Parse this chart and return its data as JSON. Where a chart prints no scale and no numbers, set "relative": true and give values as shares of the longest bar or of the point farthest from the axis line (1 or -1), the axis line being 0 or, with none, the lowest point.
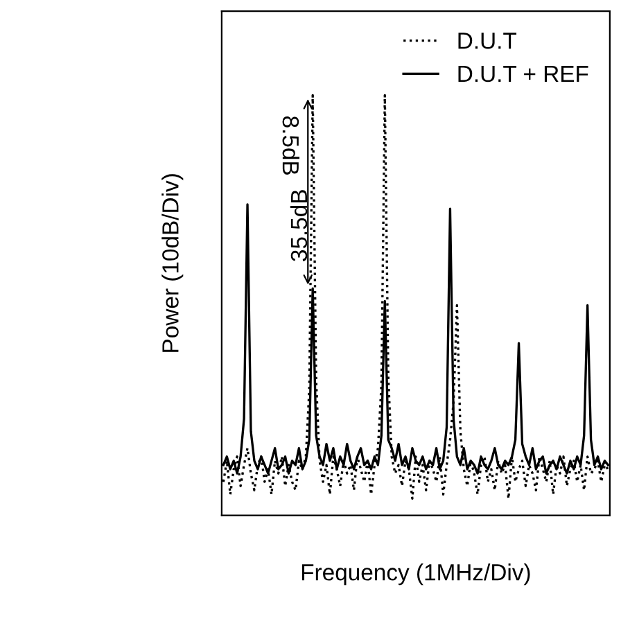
{
  "chart_data": {
    "type": "line",
    "relative": true,
    "xlabel": "Frequency (1MHz/Div)",
    "ylabel": "Power (10dB/Div)",
    "legend": "top right",
    "marker": "none",
    "tick_labels": false,
    "grid": false,
    "annotations": [
      "35.5dB",
      "8.5dB"
    ],
    "categories": [
      null,
      null,
      null,
      null,
      null,
      null,
      null,
      null,
      null,
      null,
      null,
      null,
      null,
      null,
      null,
      null,
      null,
      null,
      null,
      null,
      null,
      null,
      null,
      null,
      null,
      null,
      null,
      null,
      null,
      null,
      null,
      null,
      null,
      null,
      null,
      null,
      null,
      null,
      null,
      null,
      null,
      null,
      null,
      null,
      null,
      null,
      null,
      null,
      null,
      null,
      null,
      null,
      null,
      null,
      null,
      null,
      null,
      null,
      null,
      null,
      null,
      null,
      null,
      null,
      null,
      null,
      null,
      null,
      null,
      null,
      null,
      null,
      null,
      null,
      null,
      null,
      null,
      null,
      null,
      null,
      null,
      null,
      null,
      null,
      null,
      null,
      null,
      null,
      null,
      null,
      null,
      null,
      null,
      null,
      null,
      null,
      null,
      null,
      null,
      null,
      null,
      null,
      null,
      null,
      null,
      null,
      null,
      null,
      null,
      null,
      null,
      null,
      null
    ],
    "series": [
      {
        "name": "D.U.T",
        "color": "#000000",
        "line_style": "dotted",
        "values": [
          0.08,
          0.13,
          0.05,
          0.11,
          0.14,
          0.07,
          0.12,
          0.16,
          0.1,
          0.06,
          0.12,
          0.14,
          0.08,
          0.11,
          0.05,
          0.13,
          0.1,
          0.14,
          0.07,
          0.12,
          0.08,
          0.06,
          0.13,
          0.11,
          0.14,
          0.3,
          1.0,
          0.32,
          0.13,
          0.08,
          0.12,
          0.05,
          0.14,
          0.11,
          0.07,
          0.13,
          0.1,
          0.12,
          0.06,
          0.14,
          0.11,
          0.08,
          0.13,
          0.05,
          0.12,
          0.16,
          0.31,
          1.0,
          0.33,
          0.14,
          0.1,
          0.12,
          0.07,
          0.13,
          0.11,
          0.04,
          0.14,
          0.08,
          0.12,
          0.06,
          0.13,
          0.11,
          0.08,
          0.14,
          0.05,
          0.12,
          0.18,
          0.27,
          0.5,
          0.2,
          0.11,
          0.07,
          0.13,
          0.1,
          0.05,
          0.12,
          0.14,
          0.08,
          0.11,
          0.06,
          0.13,
          0.1,
          0.12,
          0.04,
          0.14,
          0.08,
          0.11,
          0.13,
          0.07,
          0.12,
          0.1,
          0.06,
          0.14,
          0.11,
          0.08,
          0.13,
          0.05,
          0.12,
          0.1,
          0.14,
          0.07,
          0.11,
          0.13,
          0.08,
          0.12,
          0.06,
          0.14,
          0.1,
          0.11,
          0.13,
          0.08,
          0.12,
          0.11
        ]
      },
      {
        "name": "D.U.T + REF",
        "color": "#000000",
        "line_style": "solid",
        "values": [
          0.12,
          0.14,
          0.11,
          0.13,
          0.1,
          0.14,
          0.23,
          0.74,
          0.2,
          0.13,
          0.11,
          0.14,
          0.12,
          0.1,
          0.13,
          0.16,
          0.11,
          0.12,
          0.14,
          0.1,
          0.13,
          0.12,
          0.16,
          0.11,
          0.13,
          0.18,
          0.54,
          0.19,
          0.14,
          0.12,
          0.17,
          0.13,
          0.16,
          0.11,
          0.14,
          0.12,
          0.17,
          0.13,
          0.11,
          0.14,
          0.16,
          0.12,
          0.13,
          0.11,
          0.14,
          0.12,
          0.19,
          0.51,
          0.18,
          0.16,
          0.13,
          0.17,
          0.12,
          0.14,
          0.11,
          0.16,
          0.13,
          0.12,
          0.14,
          0.11,
          0.13,
          0.12,
          0.16,
          0.11,
          0.13,
          0.21,
          0.73,
          0.23,
          0.14,
          0.12,
          0.16,
          0.11,
          0.13,
          0.12,
          0.1,
          0.14,
          0.12,
          0.11,
          0.13,
          0.16,
          0.12,
          0.11,
          0.13,
          0.12,
          0.14,
          0.18,
          0.41,
          0.17,
          0.14,
          0.12,
          0.16,
          0.11,
          0.13,
          0.14,
          0.1,
          0.12,
          0.13,
          0.11,
          0.14,
          0.12,
          0.1,
          0.13,
          0.11,
          0.14,
          0.12,
          0.19,
          0.5,
          0.18,
          0.12,
          0.14,
          0.11,
          0.13,
          0.12
        ]
      }
    ]
  }
}
